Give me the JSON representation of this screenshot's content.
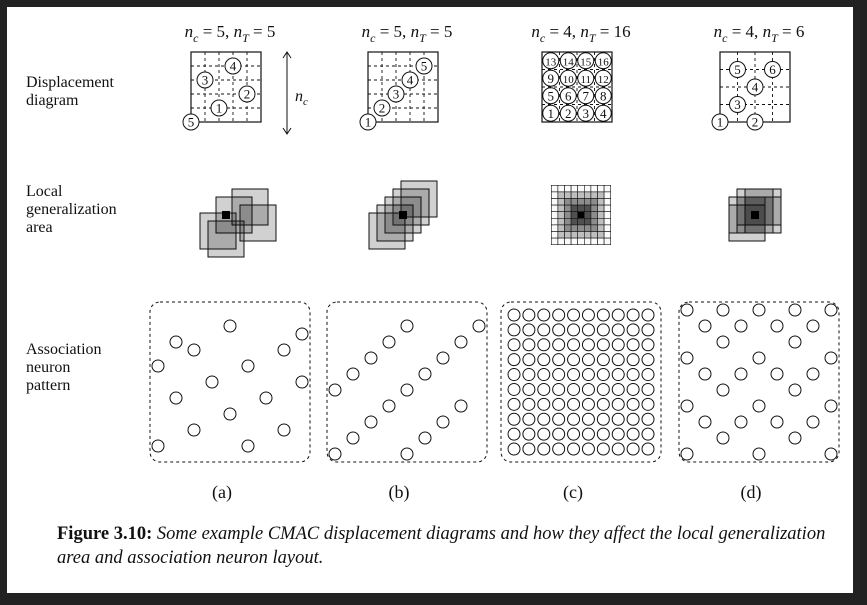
{
  "row_labels": {
    "displacement": [
      "Displacement",
      "diagram"
    ],
    "local": [
      "Local",
      "generalization",
      "area"
    ],
    "association": [
      "Association",
      "neuron",
      "pattern"
    ]
  },
  "columns": [
    {
      "label": "(a)",
      "header": {
        "nc": "5",
        "nT": "5"
      },
      "grid_size": 5,
      "numbers": [
        {
          "n": "4",
          "c": 3,
          "r": 0
        },
        {
          "n": "3",
          "c": 1,
          "r": 1
        },
        {
          "n": "2",
          "c": 4,
          "r": 2
        },
        {
          "n": "1",
          "c": 2,
          "r": 3
        },
        {
          "n": "5",
          "c": 0,
          "r": 4
        }
      ],
      "local": {
        "type": "squares",
        "offsets": [
          [
            1,
            0
          ],
          [
            3,
            -1
          ],
          [
            4,
            1
          ],
          [
            -1,
            2
          ],
          [
            0,
            3
          ]
        ]
      },
      "neurons": [
        [
          1,
          4
        ],
        [
          4,
          2
        ],
        [
          8,
          3
        ],
        [
          2,
          5
        ],
        [
          7,
          5
        ],
        [
          0,
          7
        ],
        [
          5,
          7
        ],
        [
          3,
          9
        ],
        [
          8,
          9
        ],
        [
          1,
          11
        ],
        [
          6,
          11
        ],
        [
          4,
          13
        ],
        [
          2,
          15
        ],
        [
          7,
          15
        ],
        [
          0,
          17
        ],
        [
          5,
          17
        ]
      ]
    },
    {
      "label": "(b)",
      "header": {
        "nc": "5",
        "nT": "5"
      },
      "grid_size": 5,
      "numbers": [
        {
          "n": "5",
          "c": 4,
          "r": 0
        },
        {
          "n": "4",
          "c": 3,
          "r": 1
        },
        {
          "n": "3",
          "c": 2,
          "r": 2
        },
        {
          "n": "2",
          "c": 1,
          "r": 3
        },
        {
          "n": "1",
          "c": 0,
          "r": 4
        }
      ],
      "local": {
        "type": "squares",
        "offsets": [
          [
            -2,
            2
          ],
          [
            -1,
            1
          ],
          [
            0,
            0
          ],
          [
            1,
            -1
          ],
          [
            2,
            -2
          ]
        ]
      },
      "neurons": [
        [
          4,
          2
        ],
        [
          8,
          2
        ],
        [
          3,
          4
        ],
        [
          7,
          4
        ],
        [
          2,
          6
        ],
        [
          6,
          6
        ],
        [
          1,
          8
        ],
        [
          5,
          8
        ],
        [
          0,
          10
        ],
        [
          4,
          10
        ],
        [
          3,
          12
        ],
        [
          7,
          12
        ],
        [
          2,
          14
        ],
        [
          6,
          14
        ],
        [
          1,
          16
        ],
        [
          5,
          16
        ],
        [
          0,
          18
        ],
        [
          4,
          18
        ]
      ]
    },
    {
      "label": "(c)",
      "header": {
        "nc": "4",
        "nT": "16"
      },
      "grid_size": 4,
      "numbers": [
        {
          "n": "13",
          "c": 0,
          "r": 0
        },
        {
          "n": "14",
          "c": 1,
          "r": 0
        },
        {
          "n": "15",
          "c": 2,
          "r": 0
        },
        {
          "n": "16",
          "c": 3,
          "r": 0
        },
        {
          "n": "9",
          "c": 0,
          "r": 1
        },
        {
          "n": "10",
          "c": 1,
          "r": 1
        },
        {
          "n": "11",
          "c": 2,
          "r": 1
        },
        {
          "n": "12",
          "c": 3,
          "r": 1
        },
        {
          "n": "5",
          "c": 0,
          "r": 2
        },
        {
          "n": "6",
          "c": 1,
          "r": 2
        },
        {
          "n": "7",
          "c": 2,
          "r": 2
        },
        {
          "n": "8",
          "c": 3,
          "r": 2
        },
        {
          "n": "1",
          "c": 0,
          "r": 3
        },
        {
          "n": "2",
          "c": 1,
          "r": 3
        },
        {
          "n": "3",
          "c": 2,
          "r": 3
        },
        {
          "n": "4",
          "c": 3,
          "r": 3
        }
      ],
      "local": {
        "type": "fullgrid"
      },
      "neurons": "full"
    },
    {
      "label": "(d)",
      "header": {
        "nc": "4",
        "nT": "6"
      },
      "grid_size": 4,
      "numbers": [
        {
          "n": "5",
          "c": 1,
          "r": 0
        },
        {
          "n": "6",
          "c": 3,
          "r": 0
        },
        {
          "n": "4",
          "c": 2,
          "r": 1
        },
        {
          "n": "3",
          "c": 1,
          "r": 2
        },
        {
          "n": "1",
          "c": 0,
          "r": 3
        },
        {
          "n": "2",
          "c": 2,
          "r": 3
        }
      ],
      "local": {
        "type": "squares",
        "offsets": [
          [
            0,
            -1
          ],
          [
            1,
            0
          ],
          [
            -1,
            1
          ],
          [
            1,
            -1
          ],
          [
            0,
            0
          ],
          [
            -1,
            0
          ]
        ]
      },
      "neurons": [
        [
          0,
          2
        ],
        [
          4,
          2
        ],
        [
          8,
          2
        ],
        [
          12,
          2
        ],
        [
          16,
          2
        ],
        [
          2,
          4
        ],
        [
          6,
          4
        ],
        [
          10,
          4
        ],
        [
          14,
          4
        ],
        [
          4,
          6
        ],
        [
          12,
          6
        ],
        [
          0,
          8
        ],
        [
          8,
          8
        ],
        [
          16,
          8
        ],
        [
          2,
          10
        ],
        [
          6,
          10
        ],
        [
          10,
          10
        ],
        [
          14,
          10
        ],
        [
          4,
          12
        ],
        [
          12,
          12
        ],
        [
          0,
          14
        ],
        [
          8,
          14
        ],
        [
          16,
          14
        ],
        [
          2,
          16
        ],
        [
          6,
          16
        ],
        [
          10,
          16
        ],
        [
          14,
          16
        ],
        [
          4,
          18
        ],
        [
          12,
          18
        ],
        [
          0,
          20
        ],
        [
          8,
          20
        ],
        [
          16,
          20
        ]
      ]
    }
  ],
  "nc_side_label": "n_c",
  "caption": {
    "label": "Figure 3.10",
    "text": "Some example CMAC displacement diagrams and how they affect the local generalization area and association neuron layout."
  }
}
